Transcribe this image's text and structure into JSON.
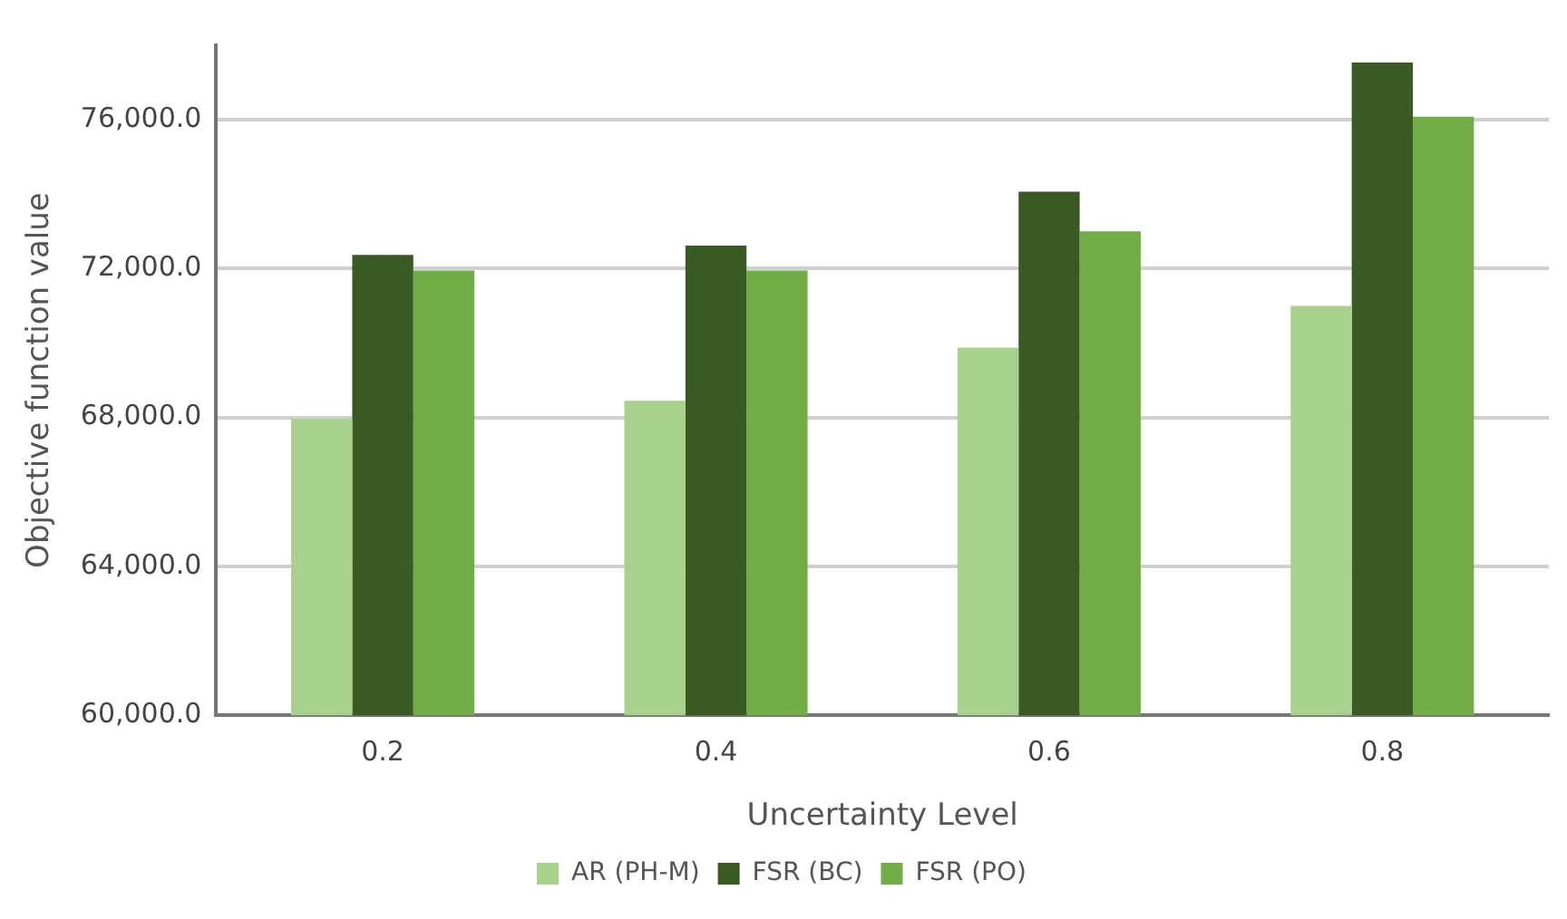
{
  "chart_data": {
    "type": "bar",
    "xlabel": "Uncertainty Level",
    "ylabel": "Objective function value",
    "categories": [
      "0.2",
      "0.4",
      "0.6",
      "0.8"
    ],
    "series": [
      {
        "name": "AR (PH-M)",
        "color": "#a9d18e",
        "values": [
          67970,
          68450,
          69880,
          71000
        ]
      },
      {
        "name": "FSR (BC)",
        "color": "#3a5a24",
        "values": [
          72370,
          72620,
          74070,
          77540
        ]
      },
      {
        "name": "FSR (PO)",
        "color": "#70ad47",
        "values": [
          71950,
          71950,
          73000,
          76080
        ]
      }
    ],
    "ylim": [
      60000,
      78000
    ],
    "yticks": [
      {
        "value": 60000,
        "label": "60,000.0"
      },
      {
        "value": 64000,
        "label": "64,000.0"
      },
      {
        "value": 68000,
        "label": "68,000.0"
      },
      {
        "value": 72000,
        "label": "72,000.0"
      },
      {
        "value": 76000,
        "label": "76,000.0"
      }
    ],
    "grid": "y",
    "legend": "bottom"
  }
}
